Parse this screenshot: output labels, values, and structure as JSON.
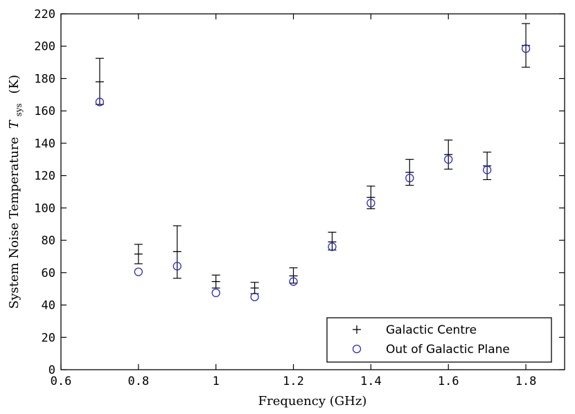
{
  "chart_data": {
    "type": "scatter",
    "xlabel": "Frequency (GHz)",
    "ylabel": "System Noise Temperature",
    "ylabel_symbol": "T",
    "ylabel_subscript": "sys",
    "ylabel_unit": "(K)",
    "xlim": [
      0.6,
      1.9
    ],
    "ylim": [
      0,
      220
    ],
    "x_ticks": [
      0.6,
      0.8,
      1.0,
      1.2,
      1.4,
      1.6,
      1.8
    ],
    "x_tick_labels": [
      "0.6",
      "0.8",
      "1",
      "1.2",
      "1.4",
      "1.6",
      "1.8"
    ],
    "y_ticks": [
      0,
      20,
      40,
      60,
      80,
      100,
      120,
      140,
      160,
      180,
      200,
      220
    ],
    "y_tick_labels": [
      "0",
      "20",
      "40",
      "60",
      "80",
      "100",
      "120",
      "140",
      "160",
      "180",
      "200",
      "220"
    ],
    "grid": false,
    "legend_position": "bottom-right",
    "series": [
      {
        "name": "Galactic Centre",
        "marker": "plus",
        "color": "#000000",
        "x": [
          0.7,
          0.8,
          0.9,
          1.0,
          1.1,
          1.2,
          1.3,
          1.4,
          1.5,
          1.6,
          1.7,
          1.8
        ],
        "y": [
          178,
          71.5,
          73,
          54.5,
          50.5,
          58,
          79,
          106.5,
          122,
          133,
          126,
          200.5
        ],
        "y_low": [
          164,
          65.5,
          56.5,
          50.5,
          47,
          53.5,
          74,
          99.5,
          114,
          124,
          117.5,
          187
        ],
        "y_high": [
          192.5,
          77.5,
          89,
          58.5,
          54,
          63,
          85,
          113.5,
          130,
          142,
          134.5,
          214
        ]
      },
      {
        "name": "Out of Galactic Plane",
        "marker": "circle",
        "color": "#2a2ad0",
        "x": [
          0.7,
          0.8,
          0.9,
          1.0,
          1.1,
          1.2,
          1.3,
          1.4,
          1.5,
          1.6,
          1.7,
          1.8
        ],
        "y": [
          165.5,
          60.5,
          64,
          47.5,
          45,
          54.5,
          76,
          103,
          118.5,
          130,
          123.5,
          198.5
        ]
      }
    ]
  }
}
